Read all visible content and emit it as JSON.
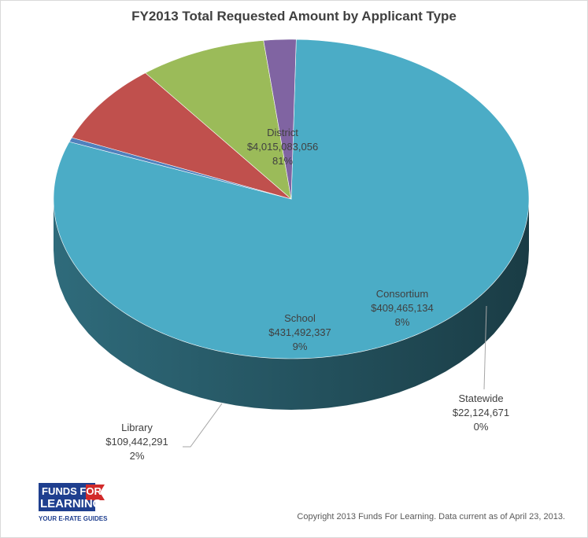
{
  "chart_data": {
    "type": "pie",
    "style": "3d",
    "title": "FY2013 Total Requested Amount by Applicant Type",
    "legend": "none",
    "slices": [
      {
        "name": "District",
        "amount": "$4,015,083,056",
        "percent": "81%",
        "value": 4015083056,
        "color": "#4bacc6"
      },
      {
        "name": "Statewide",
        "amount": "$22,124,671",
        "percent": "0%",
        "value": 22124671,
        "color": "#4f81bd"
      },
      {
        "name": "Consortium",
        "amount": "$409,465,134",
        "percent": "8%",
        "value": 409465134,
        "color": "#c0504d"
      },
      {
        "name": "School",
        "amount": "$431,492,337",
        "percent": "9%",
        "value": 431492337,
        "color": "#9bbb59"
      },
      {
        "name": "Library",
        "amount": "$109,442,291",
        "percent": "2%",
        "value": 109442291,
        "color": "#8064a2"
      }
    ]
  },
  "logo": {
    "line1": "FUNDS FOR",
    "line2": "LEARNING",
    "tagline": "YOUR E-RATE GUIDES"
  },
  "footer": {
    "copyright": "Copyright 2013 Funds For Learning.  Data current as of April 23, 2013."
  }
}
